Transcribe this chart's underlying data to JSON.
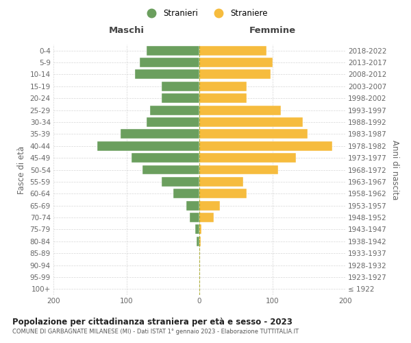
{
  "age_groups": [
    "100+",
    "95-99",
    "90-94",
    "85-89",
    "80-84",
    "75-79",
    "70-74",
    "65-69",
    "60-64",
    "55-59",
    "50-54",
    "45-49",
    "40-44",
    "35-39",
    "30-34",
    "25-29",
    "20-24",
    "15-19",
    "10-14",
    "5-9",
    "0-4"
  ],
  "birth_years": [
    "≤ 1922",
    "1923-1927",
    "1928-1932",
    "1933-1937",
    "1938-1942",
    "1943-1947",
    "1948-1952",
    "1953-1957",
    "1958-1962",
    "1963-1967",
    "1968-1972",
    "1973-1977",
    "1978-1982",
    "1983-1987",
    "1988-1992",
    "1993-1997",
    "1998-2002",
    "2003-2007",
    "2008-2012",
    "2013-2017",
    "2018-2022"
  ],
  "males": [
    0,
    0,
    0,
    0,
    4,
    6,
    13,
    18,
    36,
    52,
    78,
    93,
    140,
    108,
    72,
    68,
    52,
    52,
    88,
    82,
    72
  ],
  "females": [
    0,
    0,
    0,
    0,
    2,
    3,
    20,
    28,
    65,
    60,
    108,
    132,
    182,
    148,
    142,
    112,
    65,
    65,
    98,
    100,
    92
  ],
  "male_color": "#6b9f5e",
  "female_color": "#f6bc3e",
  "title": "Popolazione per cittadinanza straniera per età e sesso - 2023",
  "subtitle": "COMUNE DI GARBAGNATE MILANESE (MI) - Dati ISTAT 1° gennaio 2023 - Elaborazione TUTTITALIA.IT",
  "xlabel_left": "Maschi",
  "xlabel_right": "Femmine",
  "ylabel_left": "Fasce di età",
  "ylabel_right": "Anni di nascita",
  "legend_stranieri": "Stranieri",
  "legend_straniere": "Straniere",
  "xlim": 200,
  "background_color": "#ffffff",
  "grid_color": "#cccccc"
}
